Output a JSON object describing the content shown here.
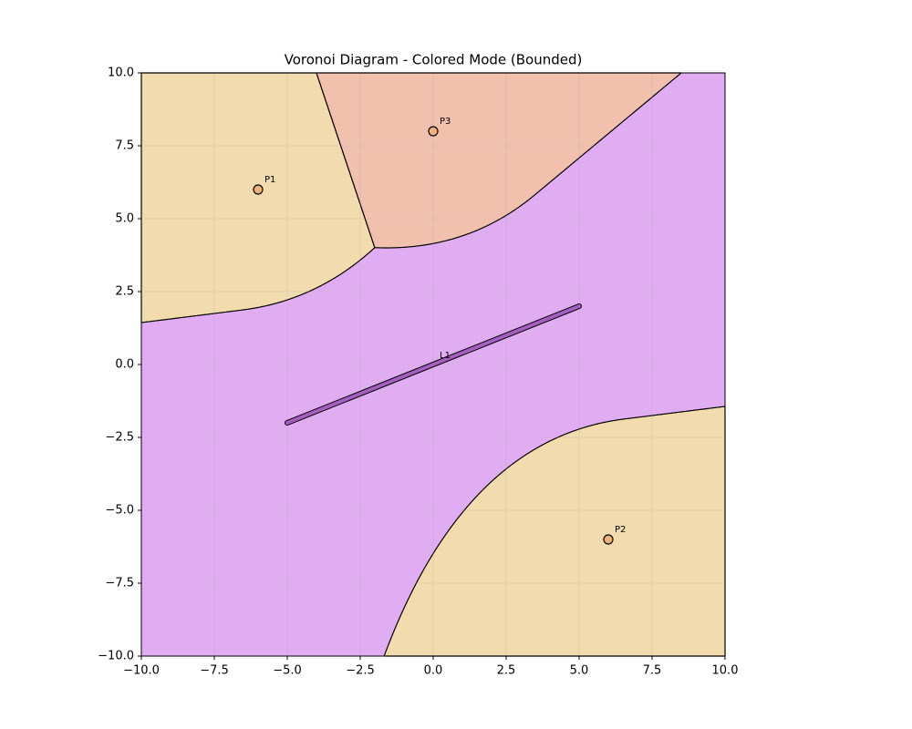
{
  "chart_data": {
    "type": "voronoi",
    "title": "Voronoi Diagram - Colored Mode (Bounded)",
    "xlim": [
      -10,
      10
    ],
    "ylim": [
      -10,
      10
    ],
    "xticks": [
      {
        "value": -10,
        "label": "−10.0"
      },
      {
        "value": -7.5,
        "label": "−7.5"
      },
      {
        "value": -5,
        "label": "−5.0"
      },
      {
        "value": -2.5,
        "label": "−2.5"
      },
      {
        "value": 0,
        "label": "0.0"
      },
      2.5,
      {
        "value": 5,
        "label": "5.0"
      },
      7.5,
      {
        "value": 10,
        "label": "10.0"
      }
    ],
    "yticks": [
      {
        "value": -10,
        "label": "−10.0"
      },
      {
        "value": -7.5,
        "label": "−7.5"
      },
      {
        "value": -5,
        "label": "−5.0"
      },
      {
        "value": -2.5,
        "label": "−2.5"
      },
      {
        "value": 0,
        "label": "0.0"
      },
      2.5,
      {
        "value": 5,
        "label": "5.0"
      },
      7.5,
      {
        "value": 10,
        "label": "10.0"
      }
    ],
    "grid": true,
    "sites": [
      {
        "name": "P1",
        "x": -6,
        "y": 6,
        "color": "#f0b27a",
        "region_color": "#f2dcad"
      },
      {
        "name": "P2",
        "x": 6,
        "y": -6,
        "color": "#f0b27a",
        "region_color": "#f2dcad"
      },
      {
        "name": "P3",
        "x": 0,
        "y": 8,
        "color": "#f0b27a",
        "region_color": "#f2c1ae"
      }
    ],
    "segments": [
      {
        "name": "L1",
        "x": [
          -5,
          5
        ],
        "y": [
          -2,
          2
        ],
        "color": "#a55fc0",
        "region_color": "#e1adf2"
      }
    ]
  }
}
